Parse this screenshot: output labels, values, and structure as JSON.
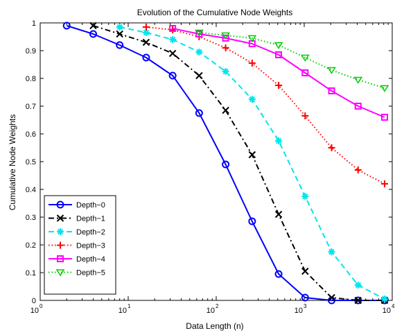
{
  "chart_data": {
    "type": "line",
    "title": "Evolution of the Cumulative Node Weights",
    "xlabel": "Data Length (n)",
    "ylabel": "Cumulative Node Weights",
    "x_scale": "log",
    "xlim": [
      1,
      10000
    ],
    "ylim": [
      0,
      1
    ],
    "grid": false,
    "legend_position": "bottom-left",
    "x_ticks": [
      {
        "value": 1,
        "base": "10",
        "exp": "0"
      },
      {
        "value": 10,
        "base": "10",
        "exp": "1"
      },
      {
        "value": 100,
        "base": "10",
        "exp": "2"
      },
      {
        "value": 1000,
        "base": "10",
        "exp": "3"
      },
      {
        "value": 10000,
        "base": "10",
        "exp": "4"
      }
    ],
    "y_ticks": [
      {
        "value": 0,
        "label": "0"
      },
      {
        "value": 0.1,
        "label": "0.1"
      },
      {
        "value": 0.2,
        "label": "0.2"
      },
      {
        "value": 0.3,
        "label": "0.3"
      },
      {
        "value": 0.4,
        "label": "0.4"
      },
      {
        "value": 0.5,
        "label": "0.5"
      },
      {
        "value": 0.6,
        "label": "0.6"
      },
      {
        "value": 0.7,
        "label": "0.7"
      },
      {
        "value": 0.8,
        "label": "0.8"
      },
      {
        "value": 0.9,
        "label": "0.9"
      },
      {
        "value": 1,
        "label": "1"
      }
    ],
    "series": [
      {
        "name": "Depth−0",
        "color": "#0000ff",
        "dash": "solid",
        "marker": "circle",
        "x": [
          2,
          4,
          8,
          16,
          32,
          64,
          128,
          256,
          512,
          1024,
          2048,
          4096,
          8192
        ],
        "y": [
          0.99,
          0.96,
          0.92,
          0.875,
          0.81,
          0.675,
          0.49,
          0.285,
          0.095,
          0.01,
          0.0,
          0.0,
          0.0
        ]
      },
      {
        "name": "Depth−1",
        "color": "#000000",
        "dash": "dashdot",
        "marker": "x",
        "x": [
          4,
          8,
          16,
          32,
          64,
          128,
          256,
          512,
          1024,
          2048,
          4096,
          8192
        ],
        "y": [
          0.99,
          0.96,
          0.93,
          0.89,
          0.81,
          0.685,
          0.525,
          0.31,
          0.105,
          0.01,
          0.0,
          0.0
        ]
      },
      {
        "name": "Depth−2",
        "color": "#00e5ee",
        "dash": "dashed",
        "marker": "asterisk",
        "x": [
          8,
          16,
          32,
          64,
          128,
          256,
          512,
          1024,
          2048,
          4096,
          8192
        ],
        "y": [
          0.985,
          0.965,
          0.94,
          0.895,
          0.825,
          0.725,
          0.575,
          0.375,
          0.175,
          0.055,
          0.005
        ]
      },
      {
        "name": "Depth−3",
        "color": "#ff0000",
        "dash": "dotted",
        "marker": "plus",
        "x": [
          16,
          32,
          64,
          128,
          256,
          512,
          1024,
          2048,
          4096,
          8192
        ],
        "y": [
          0.985,
          0.975,
          0.95,
          0.91,
          0.855,
          0.775,
          0.665,
          0.55,
          0.47,
          0.42
        ]
      },
      {
        "name": "Depth−4",
        "color": "#ff00ff",
        "dash": "solid",
        "marker": "square",
        "x": [
          32,
          64,
          128,
          256,
          512,
          1024,
          2048,
          4096,
          8192
        ],
        "y": [
          0.98,
          0.96,
          0.945,
          0.925,
          0.885,
          0.82,
          0.755,
          0.7,
          0.66
        ]
      },
      {
        "name": "Depth−5",
        "color": "#00cc00",
        "dash": "dotted",
        "marker": "triangle-down",
        "x": [
          64,
          128,
          256,
          512,
          1024,
          2048,
          4096,
          8192
        ],
        "y": [
          0.965,
          0.955,
          0.945,
          0.92,
          0.875,
          0.83,
          0.795,
          0.765
        ]
      }
    ]
  }
}
